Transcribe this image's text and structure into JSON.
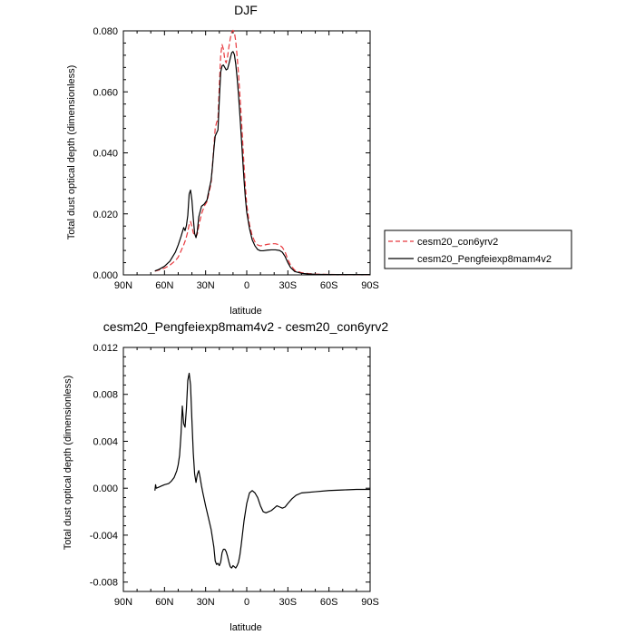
{
  "chart_data": [
    {
      "type": "line",
      "title": "DJF",
      "xlabel": "latitude",
      "ylabel": "Total dust optical depth (dimensionless)",
      "x_direction": "north-to-south",
      "xlim": [
        90,
        -90
      ],
      "ylim": [
        0.0,
        0.08
      ],
      "x_ticks": [
        90,
        60,
        30,
        0,
        -30,
        -60,
        -90
      ],
      "x_tick_labels": [
        "90N",
        "60N",
        "30N",
        "0",
        "30S",
        "60S",
        "90S"
      ],
      "y_ticks": [
        0.0,
        0.02,
        0.04,
        0.06,
        0.08
      ],
      "y_tick_labels": [
        "0.000",
        "0.020",
        "0.040",
        "0.060",
        "0.080"
      ],
      "legend_position": "right",
      "series": [
        {
          "name": "cesm20_con6yrv2",
          "color": "#e8383d",
          "dash": "dashed",
          "x": [
            67,
            64,
            60,
            56,
            52,
            50,
            48,
            46,
            45,
            44,
            43,
            42,
            41,
            40,
            39,
            38,
            37,
            36,
            35,
            33,
            31,
            29,
            28,
            26,
            25,
            24,
            23,
            22,
            21,
            20,
            19,
            18,
            17,
            16,
            15,
            14,
            13,
            12,
            11,
            10,
            9,
            8,
            7,
            6,
            5,
            4,
            3,
            2,
            1,
            0,
            -2,
            -4,
            -6,
            -8,
            -10,
            -12,
            -15,
            -18,
            -21,
            -24,
            -26,
            -28,
            -30,
            -32,
            -35,
            -40,
            -45,
            -50,
            -55,
            -60,
            -65,
            -70,
            -75,
            -80,
            -85,
            -90
          ],
          "y": [
            0.0012,
            0.0016,
            0.0022,
            0.0032,
            0.0047,
            0.0058,
            0.0078,
            0.0098,
            0.011,
            0.0125,
            0.0142,
            0.0165,
            0.0175,
            0.0158,
            0.0138,
            0.0128,
            0.0125,
            0.0135,
            0.016,
            0.02,
            0.0225,
            0.024,
            0.026,
            0.03,
            0.036,
            0.042,
            0.048,
            0.05,
            0.051,
            0.062,
            0.072,
            0.0755,
            0.074,
            0.0705,
            0.0695,
            0.0715,
            0.0748,
            0.0775,
            0.0795,
            0.0802,
            0.0795,
            0.0765,
            0.0715,
            0.066,
            0.059,
            0.052,
            0.044,
            0.036,
            0.029,
            0.023,
            0.0165,
            0.0128,
            0.0108,
            0.0098,
            0.0095,
            0.0097,
            0.01,
            0.0102,
            0.0102,
            0.0098,
            0.009,
            0.0075,
            0.005,
            0.0032,
            0.0015,
            0.0007,
            0.0004,
            0.00025,
            0.00018,
            0.00015,
            0.00012,
            0.0001,
            0.0001,
            0.0001,
            0.0001,
            0.0001
          ]
        },
        {
          "name": "cesm20_Pengfeiexp8mam4v2",
          "color": "#000000",
          "dash": "solid",
          "x": [
            67,
            64,
            60,
            56,
            52,
            50,
            48,
            46,
            45,
            44,
            43,
            42,
            41,
            40,
            39,
            38,
            37,
            36,
            35,
            33,
            31,
            29,
            28,
            26,
            25,
            24,
            23,
            22,
            21,
            20,
            19,
            18,
            17,
            16,
            15,
            14,
            13,
            12,
            11,
            10,
            9,
            8,
            7,
            6,
            5,
            4,
            3,
            2,
            1,
            0,
            -2,
            -4,
            -6,
            -8,
            -10,
            -12,
            -15,
            -18,
            -21,
            -24,
            -26,
            -28,
            -30,
            -32,
            -35,
            -40,
            -45,
            -50,
            -55,
            -60,
            -65,
            -70,
            -75,
            -80,
            -85,
            -90
          ],
          "y": [
            0.0013,
            0.0018,
            0.0028,
            0.0045,
            0.0075,
            0.0098,
            0.0125,
            0.0155,
            0.0145,
            0.0162,
            0.0195,
            0.0265,
            0.0278,
            0.0245,
            0.0185,
            0.0135,
            0.0122,
            0.0145,
            0.019,
            0.0225,
            0.0232,
            0.0245,
            0.0268,
            0.031,
            0.0355,
            0.041,
            0.0455,
            0.0465,
            0.0475,
            0.0575,
            0.0665,
            0.0685,
            0.0688,
            0.068,
            0.0672,
            0.0675,
            0.0692,
            0.071,
            0.0728,
            0.0732,
            0.0722,
            0.069,
            0.0645,
            0.059,
            0.0525,
            0.0455,
            0.0382,
            0.0312,
            0.0252,
            0.0205,
            0.0152,
            0.0115,
            0.0095,
            0.0083,
            0.0079,
            0.0079,
            0.0081,
            0.0082,
            0.0082,
            0.008,
            0.0074,
            0.006,
            0.004,
            0.0024,
            0.0011,
            0.0005,
            0.0003,
            0.0002,
            0.00015,
            0.00012,
            0.0001,
            0.0001,
            0.0001,
            0.0001,
            0.0001,
            0.0001
          ]
        }
      ]
    },
    {
      "type": "line",
      "title": "cesm20_Pengfeiexp8mam4v2 - cesm20_con6yrv2",
      "xlabel": "latitude",
      "ylabel": "Total dust optical depth (dimensionless)",
      "x_direction": "north-to-south",
      "xlim": [
        90,
        -90
      ],
      "ylim": [
        -0.0088,
        0.012
      ],
      "x_ticks": [
        90,
        60,
        30,
        0,
        -30,
        -60,
        -90
      ],
      "x_tick_labels": [
        "90N",
        "60N",
        "30N",
        "0",
        "30S",
        "60S",
        "90S"
      ],
      "y_ticks": [
        -0.008,
        -0.004,
        0.0,
        0.004,
        0.008,
        0.012
      ],
      "y_tick_labels": [
        "-0.008",
        "-0.004",
        "0.000",
        "0.004",
        "0.008",
        "0.012"
      ],
      "series": [
        {
          "name": "difference",
          "color": "#000000",
          "dash": "solid",
          "x": [
            67,
            66.5,
            66,
            64,
            62,
            60,
            57,
            55,
            53,
            51,
            50,
            49,
            48,
            47,
            46,
            45,
            44.5,
            44,
            43,
            42,
            41,
            40,
            39,
            38,
            37,
            36,
            35,
            34,
            33,
            32,
            30,
            28,
            26,
            24,
            23,
            22,
            21,
            20,
            19,
            18,
            17,
            16,
            15,
            14,
            13,
            12,
            11,
            10,
            9,
            8,
            7,
            6,
            5,
            4,
            3,
            2,
            0,
            -2,
            -4,
            -6,
            -8,
            -10,
            -12,
            -14,
            -16,
            -18,
            -20,
            -22,
            -24,
            -26,
            -28,
            -30,
            -33,
            -36,
            -40,
            -50,
            -60,
            -70,
            -80,
            -90
          ],
          "y": [
            -0.0002,
            0.0003,
            0.0,
            0.0001,
            0.0002,
            0.0003,
            0.0004,
            0.0006,
            0.0009,
            0.0015,
            0.002,
            0.0028,
            0.0045,
            0.007,
            0.0055,
            0.0052,
            0.006,
            0.0068,
            0.0092,
            0.0098,
            0.0088,
            0.0058,
            0.003,
            0.0012,
            0.0005,
            0.0012,
            0.0015,
            0.0009,
            0.0002,
            -0.0004,
            -0.0015,
            -0.0025,
            -0.0035,
            -0.005,
            -0.0062,
            -0.0065,
            -0.0064,
            -0.0066,
            -0.0063,
            -0.0055,
            -0.0052,
            -0.0052,
            -0.0054,
            -0.0058,
            -0.0063,
            -0.0067,
            -0.0068,
            -0.0066,
            -0.0067,
            -0.0068,
            -0.0066,
            -0.0063,
            -0.0057,
            -0.0048,
            -0.0038,
            -0.0028,
            -0.0013,
            -0.0004,
            -0.0002,
            -0.0004,
            -0.0008,
            -0.0015,
            -0.002,
            -0.0021,
            -0.002,
            -0.0019,
            -0.0017,
            -0.0015,
            -0.0016,
            -0.0017,
            -0.0016,
            -0.0013,
            -0.0009,
            -0.0006,
            -0.0004,
            -0.0003,
            -0.0002,
            -0.00015,
            -0.0001,
            -0.0001
          ]
        }
      ]
    }
  ]
}
